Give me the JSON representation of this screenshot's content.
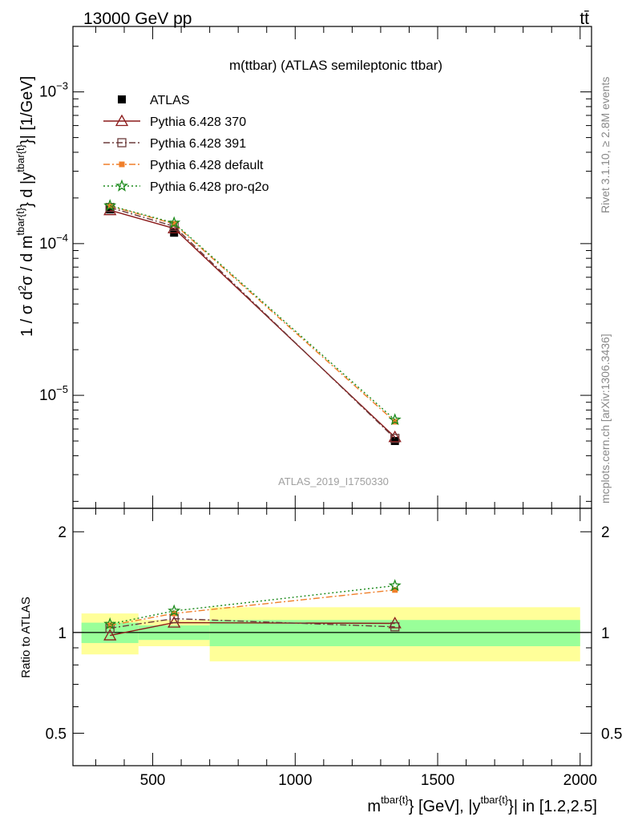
{
  "header": {
    "left": "13000 GeV pp",
    "right": "tt̄"
  },
  "side_labels": {
    "rivet": "Rivet 3.1.10, ≥ 2.8M events",
    "mcplots": "mcplots.cern.ch [arXiv:1306.3436]"
  },
  "chart_data": [
    {
      "type": "line",
      "title": "m(ttbar) (ATLAS semileptonic ttbar)",
      "watermark": "ATLAS_2019_I1750330",
      "ylabel": "1 / σ d²σ / d m^{tbar{t}} d |y^{tbar{t}}| [1/GeV]",
      "xlim": [
        220,
        2040
      ],
      "ylim": [
        1.8e-06,
        0.0027
      ],
      "log_y": true,
      "y_ticks": [
        {
          "value": 1e-05,
          "mant": "10",
          "exp": "−5"
        },
        {
          "value": 0.0001,
          "mant": "10",
          "exp": "−4"
        },
        {
          "value": 0.001,
          "mant": "10",
          "exp": "−3"
        }
      ],
      "legend_position": "top-left",
      "x": [
        350,
        575,
        1350
      ],
      "series": [
        {
          "name": "ATLAS",
          "values": [
            0.000168,
            0.000118,
            5e-06
          ],
          "color": "#000000",
          "marker": "filled-square",
          "line": "none"
        },
        {
          "name": "Pythia 6.428 370",
          "values": [
            0.000166,
            0.000126,
            5.3e-06
          ],
          "color": "#8b1a1a",
          "marker": "open-triangle",
          "line": "solid"
        },
        {
          "name": "Pythia 6.428 391",
          "values": [
            0.000173,
            0.00013,
            5.2e-06
          ],
          "color": "#6b3a3a",
          "marker": "open-square",
          "line": "dashdot"
        },
        {
          "name": "Pythia 6.428 default",
          "values": [
            0.000177,
            0.000135,
            6.7e-06
          ],
          "color": "#f07f2a",
          "marker": "filled-square-small",
          "line": "dashdot"
        },
        {
          "name": "Pythia 6.428 pro-q2o",
          "values": [
            0.000178,
            0.000137,
            6.9e-06
          ],
          "color": "#1a8a1a",
          "marker": "star",
          "line": "dotted"
        }
      ]
    },
    {
      "type": "line",
      "ylabel": "Ratio to ATLAS",
      "xlabel": "m^{tbar{t}} [GeV], |y^{tbar{t}}| in [1.2,2.5]",
      "xlim": [
        220,
        2040
      ],
      "ylim": [
        0.4,
        2.35
      ],
      "log_y": true,
      "x_ticks": [
        500,
        1000,
        1500,
        2000
      ],
      "x_tick_labels": [
        "500",
        "1000",
        "1500",
        "2000"
      ],
      "y_ticks": [
        0.5,
        1,
        2
      ],
      "y_tick_labels": [
        "0.5",
        "1",
        "2"
      ],
      "uncertainty_bands": [
        {
          "x_range": [
            250,
            450
          ],
          "stat": [
            0.93,
            1.07
          ],
          "total": [
            0.86,
            1.14
          ]
        },
        {
          "x_range": [
            450,
            700
          ],
          "stat": [
            0.95,
            1.05
          ],
          "total": [
            0.91,
            1.09
          ]
        },
        {
          "x_range": [
            700,
            2000
          ],
          "stat": [
            0.91,
            1.09
          ],
          "total": [
            0.82,
            1.19
          ]
        }
      ],
      "x": [
        350,
        575,
        1350
      ],
      "series": [
        {
          "name": "Pythia 6.428 370",
          "values": [
            0.98,
            1.07,
            1.065
          ]
        },
        {
          "name": "Pythia 6.428 391",
          "values": [
            1.03,
            1.1,
            1.04
          ]
        },
        {
          "name": "Pythia 6.428 default",
          "values": [
            1.05,
            1.14,
            1.34
          ]
        },
        {
          "name": "Pythia 6.428 pro-q2o",
          "values": [
            1.06,
            1.16,
            1.38
          ]
        }
      ]
    }
  ]
}
